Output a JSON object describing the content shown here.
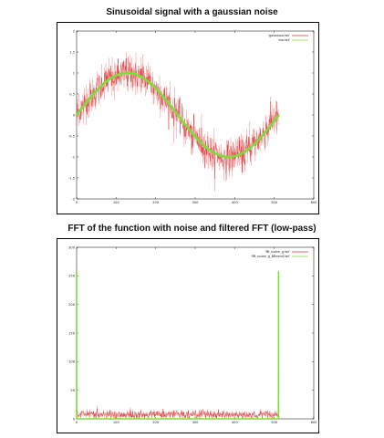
{
  "chart_data": [
    {
      "type": "line",
      "title": "Sinusoidal signal with a gaussian noise",
      "xlim": [
        0,
        600
      ],
      "ylim": [
        -2,
        2
      ],
      "x_ticks": [
        "0",
        "100",
        "200",
        "300",
        "400",
        "500",
        "600"
      ],
      "y_ticks": [
        "2",
        "1.5",
        "1",
        "0.5",
        "0",
        "-0.5",
        "-1",
        "-1.5",
        "-2"
      ],
      "legend_position": "top-right",
      "grid": false,
      "series": [
        {
          "name": "'gaussian.txt'",
          "color": "#dd3333",
          "description_values": {
            "n_points": 512,
            "noise_std": 0.18
          },
          "x": [
            0,
            64,
            128,
            192,
            256,
            320,
            384,
            448,
            512
          ],
          "values": [
            0.0,
            0.65,
            0.95,
            0.75,
            0.1,
            -0.6,
            -1.0,
            -0.7,
            0.0
          ]
        },
        {
          "name": "'sin.txt'",
          "color": "#7ddc3a",
          "x": [
            0,
            64,
            128,
            192,
            256,
            320,
            384,
            448,
            512
          ],
          "values": [
            0.0,
            0.71,
            1.0,
            0.71,
            0.0,
            -0.71,
            -1.0,
            -0.71,
            0.0
          ]
        }
      ]
    },
    {
      "type": "line",
      "title": "FFT of  the function with noise and filtered FFT (low-pass)",
      "xlim": [
        0,
        600
      ],
      "ylim": [
        0,
        300
      ],
      "x_ticks": [
        "0",
        "100",
        "200",
        "300",
        "400",
        "500",
        "600"
      ],
      "y_ticks": [
        "300",
        "250",
        "200",
        "150",
        "100",
        "50",
        "0"
      ],
      "legend_position": "top-right",
      "grid": false,
      "series": [
        {
          "name": "'fft_noise_g.txt'",
          "color": "#dd3333",
          "x": [
            0,
            1,
            100,
            200,
            300,
            400,
            510,
            511
          ],
          "values": [
            258,
            8,
            8,
            7,
            8,
            7,
            8,
            258
          ]
        },
        {
          "name": "'fft_noise_g_filtered.txt'",
          "color": "#7ddc3a",
          "x": [
            0,
            1,
            100,
            200,
            300,
            400,
            510,
            511
          ],
          "values": [
            258,
            0,
            0,
            0,
            0,
            0,
            0,
            258
          ]
        }
      ]
    }
  ]
}
